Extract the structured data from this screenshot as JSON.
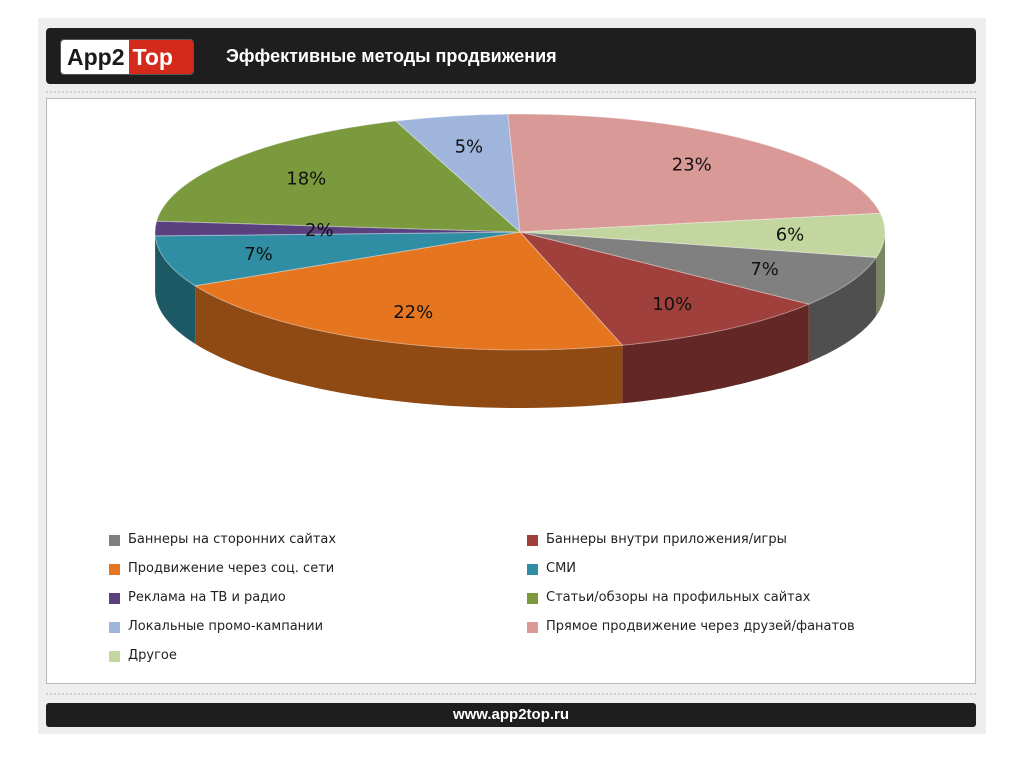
{
  "header": {
    "logo_left": "App2",
    "logo_right": "Top",
    "title": "Эффективные методы продвижения"
  },
  "footer": {
    "url": "www.app2top.ru"
  },
  "chart_data": {
    "type": "pie",
    "title": "Эффективные методы продвижения",
    "legend_position": "bottom",
    "slices": [
      {
        "label": "Баннеры на сторонних сайтах",
        "value": 7,
        "display": "7%",
        "color": "#808080"
      },
      {
        "label": "Баннеры внутри приложения/игры",
        "value": 10,
        "display": "10%",
        "color": "#a0403d"
      },
      {
        "label": "Продвижение через соц. сети",
        "value": 22,
        "display": "22%",
        "color": "#e6751f"
      },
      {
        "label": "СМИ",
        "value": 7,
        "display": "7%",
        "color": "#2f8ea3"
      },
      {
        "label": "Реклама на ТВ и радио",
        "value": 2,
        "display": "2%",
        "color": "#5b4080"
      },
      {
        "label": "Статьи/обзоры на профильных сайтах",
        "value": 18,
        "display": "18%",
        "color": "#7b9a3d"
      },
      {
        "label": "Локальные промо-кампании",
        "value": 5,
        "display": "5%",
        "color": "#9fb5dc"
      },
      {
        "label": "Прямое продвижение через друзей/фанатов",
        "value": 23,
        "display": "23%",
        "color": "#d99a97"
      },
      {
        "label": "Другое",
        "value": 6,
        "display": "6%",
        "color": "#c3d6a0"
      }
    ]
  }
}
